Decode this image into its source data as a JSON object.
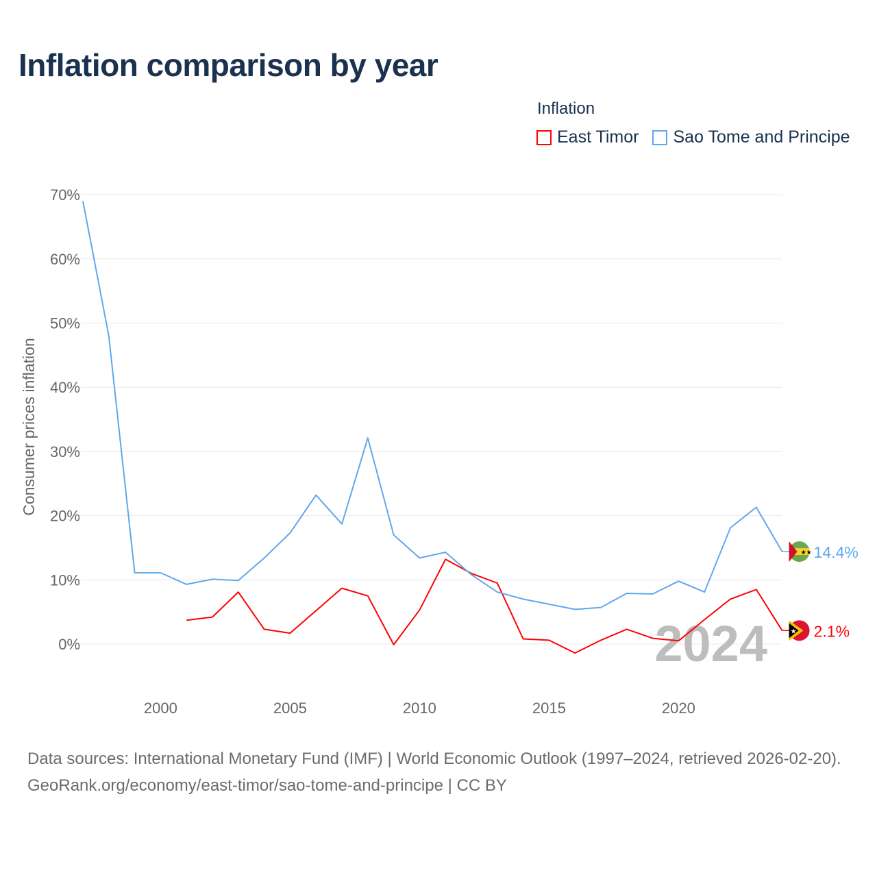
{
  "title": "Inflation comparison by year",
  "chart_data": {
    "type": "line",
    "title": "Inflation comparison by year",
    "ylabel": "Consumer prices inflation",
    "xlabel": "",
    "legend_title": "Inflation",
    "legend_position": "top-right",
    "xlim": [
      1997,
      2024
    ],
    "ylim": [
      -7,
      70
    ],
    "yticks": [
      0,
      10,
      20,
      30,
      40,
      50,
      60,
      70
    ],
    "ytick_labels": [
      "0%",
      "10%",
      "20%",
      "30%",
      "40%",
      "50%",
      "60%",
      "70%"
    ],
    "xticks": [
      2000,
      2005,
      2010,
      2015,
      2020
    ],
    "xtick_labels": [
      "2000",
      "2005",
      "2010",
      "2015",
      "2020"
    ],
    "watermark_year": "2024",
    "series": [
      {
        "name": "East Timor",
        "color": "#ff0000",
        "end_label": "2.1%",
        "x": [
          2001,
          2002,
          2003,
          2004,
          2005,
          2006,
          2007,
          2008,
          2009,
          2010,
          2011,
          2012,
          2013,
          2014,
          2015,
          2016,
          2017,
          2018,
          2019,
          2020,
          2021,
          2022,
          2023,
          2024
        ],
        "values": [
          3.7,
          4.2,
          8.1,
          2.3,
          1.7,
          5.2,
          8.7,
          7.5,
          -0.1,
          5.3,
          13.2,
          11.0,
          9.5,
          0.8,
          0.6,
          -1.4,
          0.6,
          2.3,
          0.9,
          0.5,
          3.8,
          7.0,
          8.5,
          2.1
        ]
      },
      {
        "name": "Sao Tome and Principe",
        "color": "#5ea8ee",
        "end_label": "14.4%",
        "x": [
          1997,
          1998,
          1999,
          2000,
          2001,
          2002,
          2003,
          2004,
          2005,
          2006,
          2007,
          2008,
          2009,
          2010,
          2011,
          2012,
          2013,
          2014,
          2015,
          2016,
          2017,
          2018,
          2019,
          2020,
          2021,
          2022,
          2023,
          2024
        ],
        "values": [
          69.0,
          48.0,
          11.1,
          11.1,
          9.3,
          10.1,
          9.9,
          13.4,
          17.3,
          23.2,
          18.7,
          32.1,
          17.0,
          13.4,
          14.3,
          10.8,
          8.1,
          7.0,
          6.2,
          5.4,
          5.7,
          7.9,
          7.8,
          9.8,
          8.1,
          18.1,
          21.3,
          14.4
        ]
      }
    ]
  },
  "footer": {
    "sources": "Data sources: International Monetary Fund (IMF) | World Economic Outlook (1997–2024, retrieved 2026-02-20).",
    "link": "GeoRank.org/economy/east-timor/sao-tome-and-principe | CC BY"
  }
}
